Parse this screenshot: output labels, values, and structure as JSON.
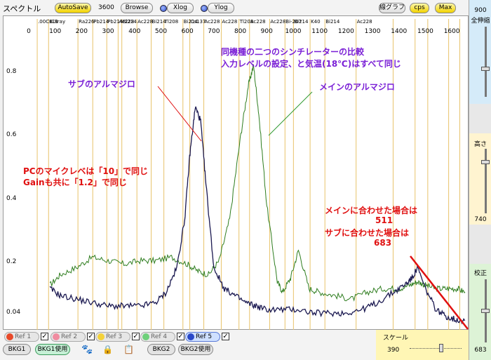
{
  "toolbar": {
    "title": "スペクトル",
    "autosave_label": "AutoSave",
    "autosave_value": "3600",
    "browse_label": "Browse",
    "xlog_label": "Xlog",
    "ylog_label": "Ylog",
    "line_graph_label": "線グラフ",
    "cps_label": "cps",
    "max_label": "Max"
  },
  "isotope_labels": [
    ".00Cs13",
    "BiXray",
    "Ra226",
    "Pb214",
    "Pb214",
    "Ac228",
    "Bi214",
    "Ac228",
    "Bi214",
    "Tl208",
    "Bi214",
    "Cs137",
    "Ac228",
    "Ac228",
    "Tl208",
    "Ac228",
    "Ac228",
    "Bi-207",
    "Bi214",
    "K40",
    "Bi214",
    "Ac228"
  ],
  "x_ticks": [
    "0",
    "100",
    "200",
    "300",
    "400",
    "500",
    "600",
    "700",
    "800",
    "900",
    "1000",
    "1100",
    "1200",
    "1300",
    "1400",
    "1500",
    "1600"
  ],
  "y_ticks": [
    "0.8",
    "0.6",
    "0.4",
    "0.2",
    "0.04"
  ],
  "annotations": {
    "comparison_title": "同機種の二つのシンチレーターの比較",
    "comparison_sub": "入力レベルの設定、と気温(18℃)はすべて同じ",
    "sub_label": "サブのアルマジロ",
    "main_label": "メインのアルマジロ",
    "pc_mic_line1": "PCのマイクレベは「10」で同じ",
    "pc_mic_line2": "Gainも共に「1.2」で同じ",
    "fit_main_label": "メインに合わせた場合は",
    "fit_main_value": "511",
    "fit_sub_label": "サブに合わせた場合は",
    "fit_sub_value": "683"
  },
  "right_panel": {
    "top_value": "900",
    "zoom_all_label": "全伸縮",
    "height_label": "高さ",
    "height_value": "740",
    "calib_label": "校正",
    "calib_value": "683"
  },
  "bottom": {
    "refs": [
      "Ref 1",
      "Ref 2",
      "Ref 3",
      "Ref 4",
      "Ref 5"
    ],
    "bkg1_label": "BKG1",
    "bkg1_used_label": "BKG1使用",
    "bkg2_label": "BKG2",
    "bkg2_used_label": "BKG2使用",
    "scale_label": "スケール",
    "scale_value": "390"
  },
  "colors": {
    "main_series": "#2e7d1e",
    "sub_series": "#1a1850",
    "annotation_blue": "#7a1fd6",
    "annotation_red": "#e01010",
    "marker_line": "#e8c36a"
  },
  "chart_data": {
    "type": "line",
    "xlim": [
      0,
      1650
    ],
    "ylim": [
      0,
      0.9
    ],
    "series": [
      {
        "name": "メインのアルマジロ",
        "x": [
          80,
          120,
          180,
          240,
          300,
          360,
          420,
          480,
          540,
          600,
          640,
          680,
          720,
          760,
          800,
          830,
          850,
          870,
          900,
          940,
          960,
          990,
          1020,
          1060,
          1100,
          1160,
          1220,
          1280,
          1340,
          1400,
          1440,
          1470,
          1500,
          1540,
          1580,
          1620,
          1650
        ],
        "y": [
          0.13,
          0.16,
          0.18,
          0.21,
          0.2,
          0.19,
          0.2,
          0.2,
          0.21,
          0.19,
          0.17,
          0.16,
          0.2,
          0.32,
          0.55,
          0.7,
          0.76,
          0.62,
          0.36,
          0.14,
          0.11,
          0.15,
          0.23,
          0.12,
          0.11,
          0.1,
          0.09,
          0.11,
          0.12,
          0.12,
          0.13,
          0.14,
          0.13,
          0.12,
          0.12,
          0.12,
          0.11
        ]
      },
      {
        "name": "サブのアルマジロ",
        "x": [
          80,
          120,
          180,
          240,
          300,
          360,
          420,
          480,
          520,
          560,
          590,
          610,
          630,
          650,
          670,
          700,
          740,
          780,
          820,
          860,
          900,
          960,
          1020,
          1080,
          1140,
          1200,
          1260,
          1320,
          1380,
          1420,
          1450,
          1470,
          1500,
          1540,
          1580,
          1620,
          1650
        ],
        "y": [
          0.12,
          0.1,
          0.09,
          0.08,
          0.07,
          0.07,
          0.07,
          0.08,
          0.11,
          0.18,
          0.32,
          0.51,
          0.64,
          0.6,
          0.42,
          0.18,
          0.12,
          0.1,
          0.08,
          0.07,
          0.06,
          0.06,
          0.06,
          0.05,
          0.05,
          0.05,
          0.06,
          0.08,
          0.11,
          0.13,
          0.15,
          0.18,
          0.12,
          0.06,
          0.04,
          0.03,
          0.03
        ]
      }
    ],
    "markers_energy": [
      32,
      75,
      186,
      242,
      295,
      338,
      352,
      409,
      463,
      511,
      583,
      609,
      662,
      728,
      795,
      835,
      911,
      969,
      1001,
      1064,
      1120,
      1238,
      1378,
      1461,
      1509,
      1588,
      1630
    ]
  }
}
